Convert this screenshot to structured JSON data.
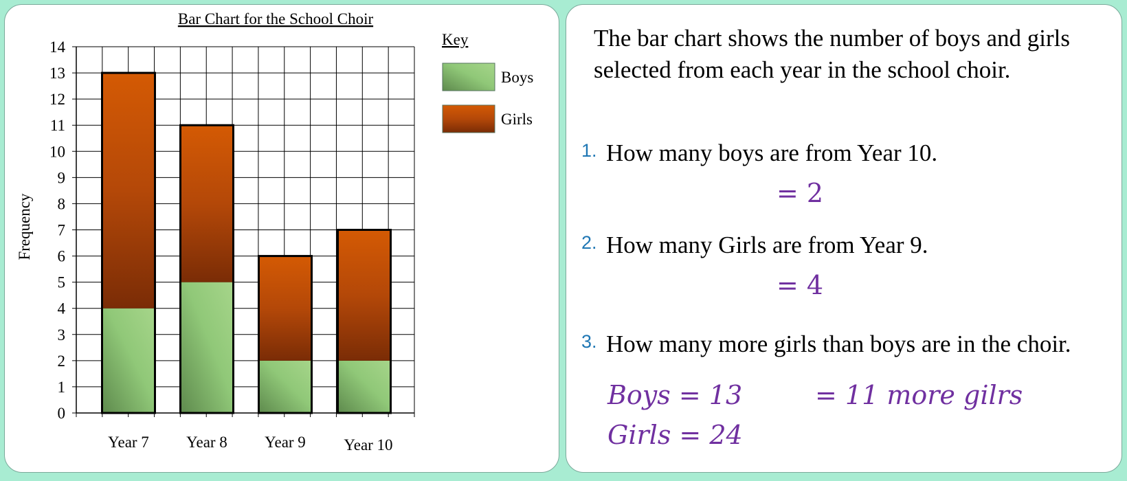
{
  "chart_data": {
    "type": "bar",
    "stacked": true,
    "title": "Bar Chart for the School Choir",
    "ylabel": "Frequency",
    "xlabel": "",
    "ylim": [
      0,
      14
    ],
    "yticks": [
      "0",
      "1",
      "2",
      "3",
      "4",
      "5",
      "6",
      "7",
      "8",
      "9",
      "10",
      "11",
      "12",
      "13",
      "14"
    ],
    "categories": [
      "Year 7",
      "Year 8",
      "Year 9",
      "Year 10"
    ],
    "series": [
      {
        "name": "Boys",
        "values": [
          4,
          5,
          2,
          2
        ],
        "color": "#8fc873"
      },
      {
        "name": "Girls",
        "values": [
          9,
          6,
          4,
          5
        ],
        "color": "#c8500a"
      }
    ],
    "legend_title": "Key",
    "legend_position": "top-right",
    "grid": true
  },
  "text_panel": {
    "intro": "The bar chart shows the number of boys and girls selected from each year in the school choir.",
    "questions": [
      {
        "number": "1.",
        "text": "How many boys are from Year 10."
      },
      {
        "number": "2.",
        "text": "How many Girls are from Year 9."
      },
      {
        "number": "3.",
        "text": "How many more girls than boys are in the choir."
      }
    ],
    "answers": {
      "q1": "= 2",
      "q2": "= 4",
      "boys": "Boys = 13",
      "girls": "Girls = 24",
      "difference": "= 11 more gilrs"
    },
    "accent_color": "#7030a0",
    "number_color": "#1f77b4"
  }
}
